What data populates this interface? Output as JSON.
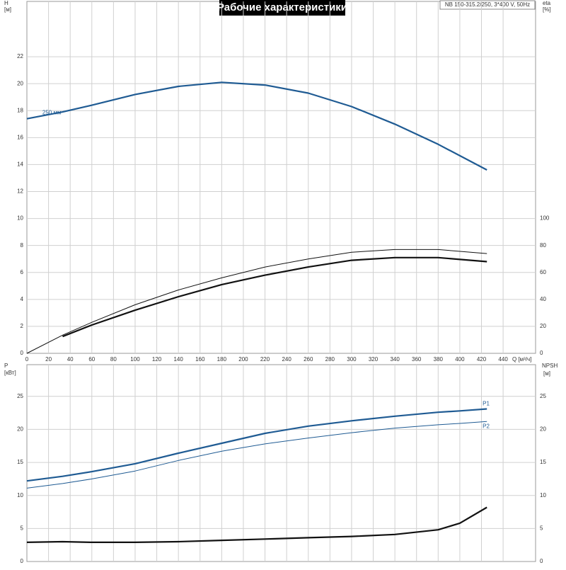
{
  "title": "Рабочие характеристики",
  "model": "NB 150-315.2/250, 3*400 V, 50Hz",
  "chart_data": [
    {
      "type": "line",
      "y_label": "H",
      "y_unit": "[м]",
      "y2_label": "eta",
      "y2_unit": "[%]",
      "x_label": "Q [м³/ч]",
      "x": [
        0,
        33,
        60,
        100,
        140,
        180,
        220,
        260,
        300,
        340,
        380,
        425
      ],
      "xlim": [
        0,
        470
      ],
      "xticks": [
        0,
        20,
        40,
        60,
        80,
        100,
        120,
        140,
        160,
        180,
        200,
        220,
        240,
        260,
        280,
        300,
        320,
        340,
        360,
        380,
        400,
        420,
        440
      ],
      "ylim": [
        0,
        26.1
      ],
      "yticks": [
        0,
        2,
        4,
        6,
        8,
        10,
        12,
        14,
        16,
        18,
        20,
        22
      ],
      "y2lim": [
        0,
        261
      ],
      "y2ticks": [
        0,
        20,
        40,
        60,
        80,
        100
      ],
      "grid": true,
      "series": [
        {
          "name": "250 мм",
          "color": "#1f5b93",
          "style": "thick",
          "values": [
            17.4,
            17.9,
            18.4,
            19.2,
            19.8,
            20.1,
            19.9,
            19.3,
            18.3,
            17.0,
            15.5,
            13.6
          ]
        },
        {
          "color": "#111111",
          "style": "thin",
          "axis": "y2",
          "values": [
            0,
            13.5,
            23,
            36,
            47,
            56,
            64,
            70,
            75,
            77,
            77,
            74
          ]
        },
        {
          "color": "#111111",
          "style": "thick",
          "axis": "y2",
          "values": [
            null,
            12.5,
            21,
            32,
            42,
            51,
            58,
            64,
            69,
            71,
            71,
            68
          ]
        }
      ]
    },
    {
      "type": "line",
      "y_label": "P",
      "y_unit": "[кВт]",
      "y2_label": "NPSH",
      "y2_unit": "[м]",
      "x": [
        0,
        33,
        60,
        100,
        140,
        180,
        220,
        260,
        300,
        340,
        380,
        400,
        425
      ],
      "xlim": [
        0,
        470
      ],
      "ylim": [
        0,
        29.8
      ],
      "yticks": [
        0,
        5,
        10,
        15,
        20,
        25
      ],
      "y2lim": [
        0,
        29.8
      ],
      "y2ticks": [
        0,
        5,
        10,
        15,
        20,
        25
      ],
      "grid": true,
      "series": [
        {
          "name": "P1",
          "color": "#1f5b93",
          "style": "thick",
          "values": [
            12.2,
            12.9,
            13.6,
            14.8,
            16.4,
            17.9,
            19.4,
            20.5,
            21.3,
            22.0,
            22.6,
            22.8,
            23.1
          ]
        },
        {
          "name": "P2",
          "color": "#1f5b93",
          "style": "thin",
          "values": [
            11.1,
            11.8,
            12.5,
            13.7,
            15.3,
            16.7,
            17.8,
            18.7,
            19.5,
            20.2,
            20.7,
            20.9,
            21.2
          ]
        },
        {
          "color": "#111111",
          "style": "thick",
          "axis": "y2",
          "values": [
            2.9,
            3.0,
            2.9,
            2.9,
            3.0,
            3.2,
            3.4,
            3.6,
            3.8,
            4.1,
            4.8,
            5.8,
            8.2
          ]
        }
      ]
    }
  ]
}
